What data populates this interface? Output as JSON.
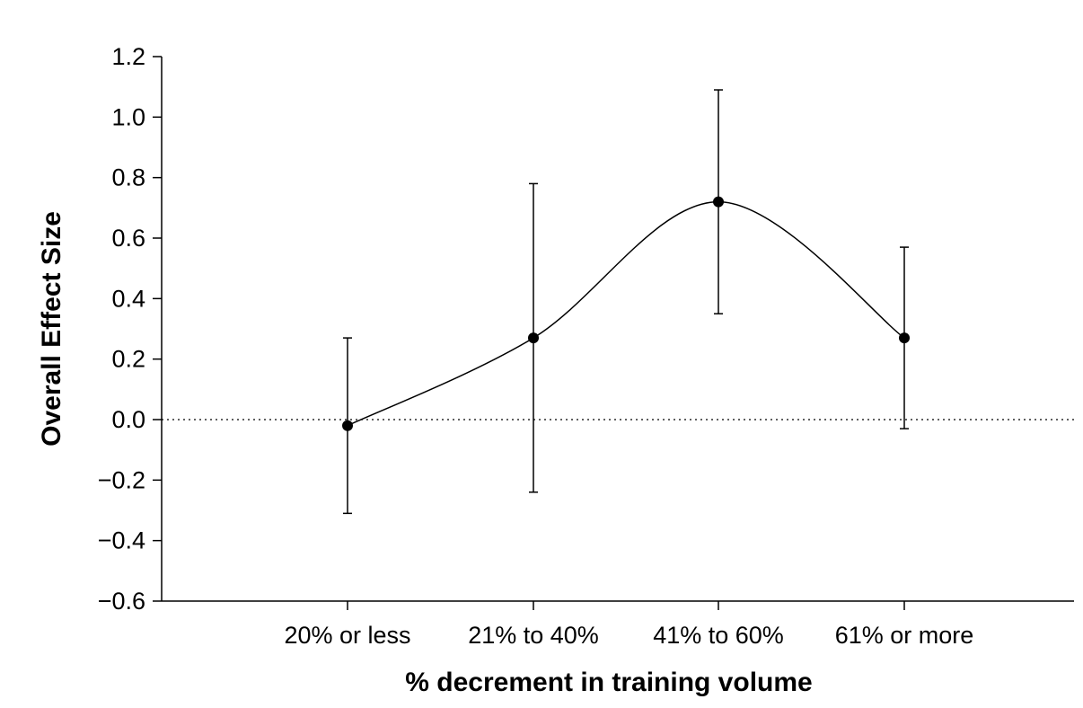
{
  "chart_data": {
    "type": "line",
    "title": "",
    "xlabel": "% decrement in training volume",
    "ylabel": "Overall Effect Size",
    "categories": [
      "20% or less",
      "21% to 40%",
      "41% to 60%",
      "61% or more"
    ],
    "series": [
      {
        "values": [
          -0.02,
          0.27,
          0.72,
          0.27
        ],
        "error_low": [
          -0.31,
          -0.24,
          0.35,
          -0.03
        ],
        "error_high": [
          0.27,
          0.78,
          1.09,
          0.57
        ]
      }
    ],
    "ylim": [
      -0.6,
      1.2
    ],
    "yticks": [
      -0.6,
      -0.4,
      -0.2,
      0.0,
      0.2,
      0.4,
      0.6,
      0.8,
      1.0,
      1.2
    ],
    "ytick_labels": [
      "−0.6",
      "−0.4",
      "−0.2",
      "0.0",
      "0.2",
      "0.4",
      "0.6",
      "0.8",
      "1.0",
      "1.2"
    ],
    "reference_line": {
      "y": 0.0,
      "style": "dotted"
    },
    "curve": "smooth",
    "grid": false,
    "legend": "none",
    "colors": {
      "line": "#000000",
      "marker": "#000000"
    }
  }
}
